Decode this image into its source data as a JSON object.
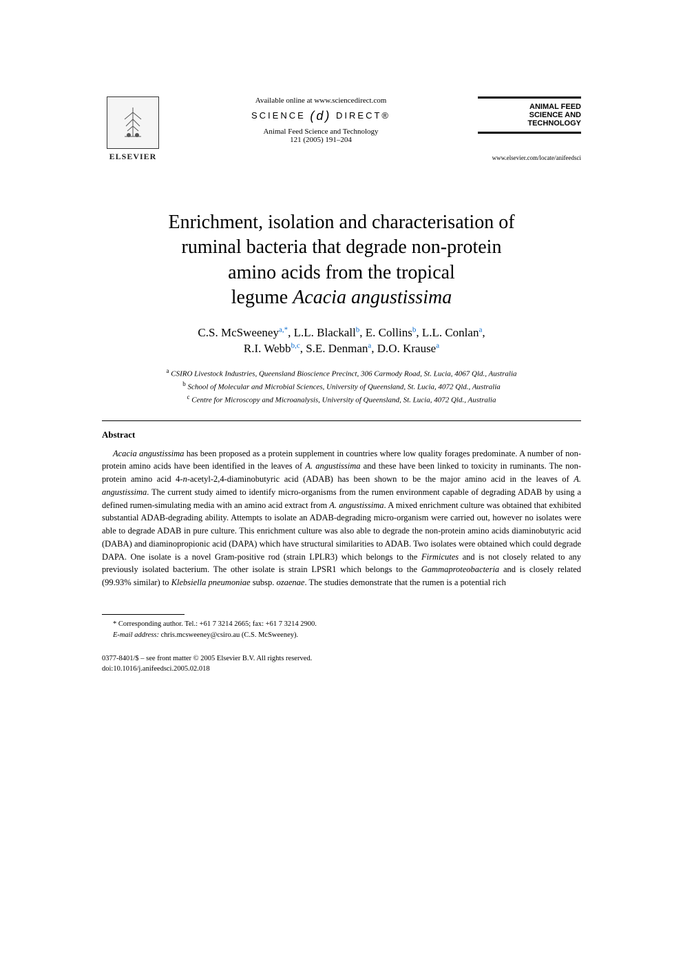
{
  "header": {
    "elsevier_label": "ELSEVIER",
    "available_online": "Available online at www.sciencedirect.com",
    "science_direct_prefix": "SCIENCE",
    "science_direct_suffix": "DIRECT®",
    "journal_name": "Animal Feed Science and Technology",
    "citation": "121 (2005) 191–204",
    "journal_box_line1": "ANIMAL FEED",
    "journal_box_line2": "SCIENCE AND",
    "journal_box_line3": "TECHNOLOGY",
    "journal_url": "www.elsevier.com/locate/anifeedsci"
  },
  "title": {
    "line1": "Enrichment, isolation and characterisation of",
    "line2": "ruminal bacteria that degrade non-protein",
    "line3": "amino acids from the tropical",
    "line4_prefix": "legume ",
    "line4_italic": "Acacia angustissima"
  },
  "authors": {
    "line1_parts": [
      {
        "name": "C.S. McSweeney",
        "sup": "a,*"
      },
      {
        "name": "L.L. Blackall",
        "sup": "b"
      },
      {
        "name": "E. Collins",
        "sup": "b"
      },
      {
        "name": "L.L. Conlan",
        "sup": "a"
      }
    ],
    "line2_parts": [
      {
        "name": "R.I. Webb",
        "sup": "b,c"
      },
      {
        "name": "S.E. Denman",
        "sup": "a"
      },
      {
        "name": "D.O. Krause",
        "sup": "a"
      }
    ]
  },
  "affiliations": [
    {
      "sup": "a",
      "text": "CSIRO Livestock Industries, Queensland Bioscience Precinct, 306 Carmody Road, St. Lucia, 4067 Qld., Australia"
    },
    {
      "sup": "b",
      "text": "School of Molecular and Microbial Sciences, University of Queensland, St. Lucia, 4072 Qld., Australia"
    },
    {
      "sup": "c",
      "text": "Centre for Microscopy and Microanalysis, University of Queensland, St. Lucia, 4072 Qld., Australia"
    }
  ],
  "abstract": {
    "heading": "Abstract",
    "text": "Acacia angustissima has been proposed as a protein supplement in countries where low quality forages predominate. A number of non-protein amino acids have been identified in the leaves of A. angustissima and these have been linked to toxicity in ruminants. The non-protein amino acid 4-n-acetyl-2,4-diaminobutyric acid (ADAB) has been shown to be the major amino acid in the leaves of A. angustissima. The current study aimed to identify micro-organisms from the rumen environment capable of degrading ADAB by using a defined rumen-simulating media with an amino acid extract from A. angustissima. A mixed enrichment culture was obtained that exhibited substantial ADAB-degrading ability. Attempts to isolate an ADAB-degrading micro-organism were carried out, however no isolates were able to degrade ADAB in pure culture. This enrichment culture was also able to degrade the non-protein amino acids diaminobutyric acid (DABA) and diaminopropionic acid (DAPA) which have structural similarities to ADAB. Two isolates were obtained which could degrade DAPA. One isolate is a novel Gram-positive rod (strain LPLR3) which belongs to the Firmicutes and is not closely related to any previously isolated bacterium. The other isolate is strain LPSR1 which belongs to the Gammaproteobacteria and is closely related (99.93% similar) to Klebsiella pneumoniae subsp. ozaenae. The studies demonstrate that the rumen is a potential rich"
  },
  "footnote": {
    "corresponding": "* Corresponding author. Tel.: +61 7 3214 2665; fax: +61 7 3214 2900.",
    "email_label": "E-mail address:",
    "email": "chris.mcsweeney@csiro.au (C.S. McSweeney)."
  },
  "copyright": {
    "line1": "0377-8401/$ – see front matter © 2005 Elsevier B.V. All rights reserved.",
    "line2": "doi:10.1016/j.anifeedsci.2005.02.018"
  },
  "colors": {
    "text": "#000000",
    "link": "#0066cc",
    "background": "#ffffff"
  },
  "typography": {
    "title_size": 28,
    "author_size": 17,
    "body_size": 12.5,
    "footnote_size": 10.5
  }
}
